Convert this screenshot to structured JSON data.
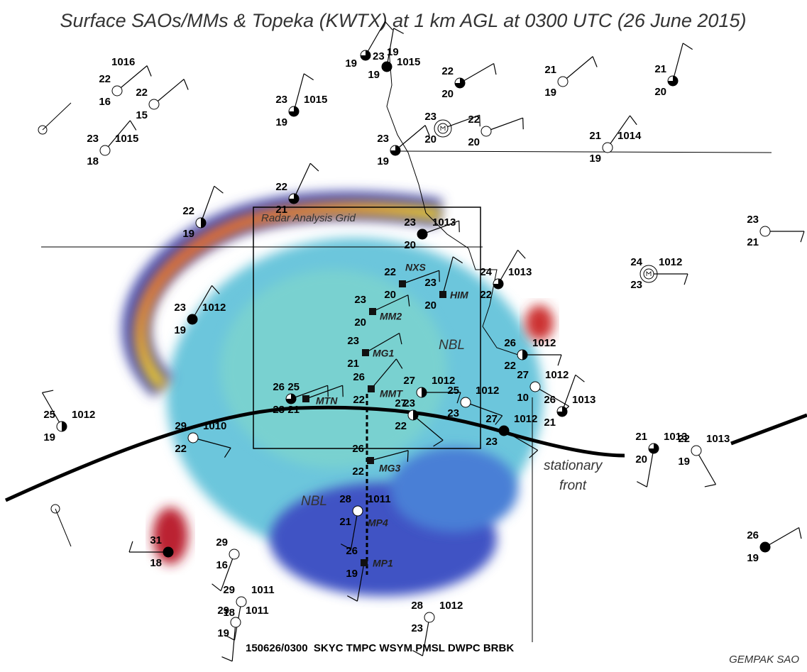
{
  "title": "Surface SAOs/MMs & Topeka (KWTX) at 1 km AGL at 0300 UTC (26 June 2015)",
  "grid_label": "Radar Analysis Grid",
  "annotations": [
    "NBL",
    "NBL"
  ],
  "front_label": [
    "stationary",
    "front"
  ],
  "footer": "150626/0300  SKYC TMPC WSYM PMSL DWPC BRBK",
  "credit": "GEMPAK SAO",
  "stations": [
    {
      "temp": "22",
      "dew": "16",
      "pressure": "1016"
    },
    {
      "temp": "22",
      "dew": "15"
    },
    {
      "temp": "23",
      "dew": "18",
      "pressure": "1015"
    },
    {
      "temp": "23",
      "dew": "19",
      "pressure": "1015"
    },
    {
      "temp": "23",
      "dew": "19"
    },
    {
      "temp": "19",
      "dew": "19",
      "pressure": "1015"
    },
    {
      "temp": "22",
      "dew": "20"
    },
    {
      "temp": "21",
      "dew": "19"
    },
    {
      "temp": "21",
      "dew": "20"
    },
    {
      "temp": "23",
      "dew": "20"
    },
    {
      "temp": "22",
      "dew": "20"
    },
    {
      "temp": "23",
      "dew": "19"
    },
    {
      "temp": "21",
      "dew": "19",
      "pressure": "1014"
    },
    {
      "temp": "22",
      "dew": "21"
    },
    {
      "temp": "22",
      "dew": "19"
    },
    {
      "temp": "23",
      "dew": "20",
      "pressure": "1013"
    },
    {
      "temp": "23",
      "dew": "21"
    },
    {
      "temp": "24",
      "dew": "22",
      "pressure": "1013"
    },
    {
      "temp": "24",
      "dew": "23",
      "pressure": "1012"
    },
    {
      "temp": "23",
      "dew": "19",
      "pressure": "1012"
    },
    {
      "temp": "22",
      "dew": "20",
      "id": "NXS"
    },
    {
      "temp": "23",
      "dew": "20",
      "id": "HIM"
    },
    {
      "temp": "23",
      "dew": "20",
      "id": "MM2"
    },
    {
      "temp": "23",
      "dew": "21",
      "id": "MG1"
    },
    {
      "temp": "26",
      "dew": "22",
      "id": "MMT"
    },
    {
      "temp": "26",
      "dew": "23"
    },
    {
      "temp": "25",
      "dew": "21",
      "id": "MTN"
    },
    {
      "temp": "27",
      "dew": "23",
      "pressure": "1012"
    },
    {
      "temp": "25",
      "dew": "23",
      "pressure": "1012"
    },
    {
      "temp": "27",
      "dew": "22"
    },
    {
      "temp": "26",
      "dew": "22",
      "pressure": "1012"
    },
    {
      "temp": "27",
      "dew": "10",
      "pressure": "1012"
    },
    {
      "temp": "26",
      "dew": "21",
      "pressure": "1013"
    },
    {
      "temp": "27",
      "dew": "23",
      "pressure": "1012"
    },
    {
      "temp": "25",
      "dew": "19",
      "pressure": "1012"
    },
    {
      "temp": "29",
      "dew": "22",
      "pressure": "1010"
    },
    {
      "temp": "21",
      "dew": "20",
      "pressure": "1013"
    },
    {
      "temp": "22",
      "dew": "19",
      "pressure": "1013"
    },
    {
      "temp": "26",
      "dew": "22",
      "id": "MG3"
    },
    {
      "temp": "28",
      "dew": "21",
      "pressure": "1011",
      "id": "MP4"
    },
    {
      "temp": "26",
      "dew": "19",
      "id": "MP1"
    },
    {
      "temp": "31",
      "dew": "18"
    },
    {
      "temp": "29",
      "dew": "16"
    },
    {
      "temp": "29",
      "dew": "18",
      "pressure": "1011"
    },
    {
      "temp": "29",
      "dew": "19",
      "pressure": "1011"
    },
    {
      "temp": "28",
      "dew": "23",
      "pressure": "1012"
    },
    {
      "temp": "26",
      "dew": "19"
    }
  ]
}
